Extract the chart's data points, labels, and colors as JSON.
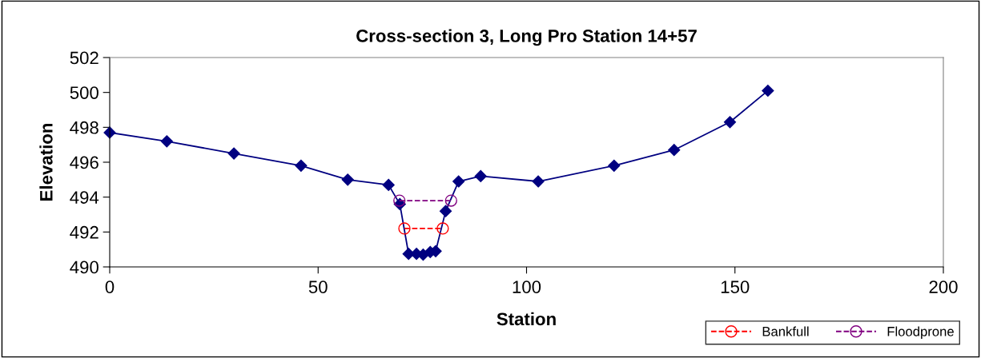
{
  "chart_data": {
    "type": "line",
    "title": "Cross-section 3, Long Pro Station 14+57",
    "xlabel": "Station",
    "ylabel": "Elevation",
    "xlim": [
      0,
      200
    ],
    "xticks": [
      0,
      50,
      100,
      150,
      200
    ],
    "ylim": [
      490,
      502
    ],
    "yticks": [
      490,
      492,
      494,
      496,
      498,
      500,
      502
    ],
    "grid": false,
    "legend": "bottom right",
    "series": [
      {
        "color": "#000080",
        "marker": "diamond",
        "line_style": "solid",
        "x": [
          0,
          13.7,
          29.8,
          45.9,
          57.1,
          66.9,
          69.6,
          71.7,
          73.6,
          75.2,
          76.9,
          78.2,
          80.6,
          83.7,
          89.0,
          102.8,
          121.0,
          135.4,
          148.8,
          157.9
        ],
        "values": [
          497.7,
          497.2,
          496.5,
          495.8,
          495.0,
          494.7,
          493.6,
          490.75,
          490.75,
          490.7,
          490.85,
          490.9,
          493.2,
          494.9,
          495.2,
          494.9,
          495.8,
          496.7,
          498.3,
          500.1
        ]
      },
      {
        "name": "Bankfull",
        "color": "#ff0000",
        "marker": "circle",
        "line_style": "dashed",
        "x": [
          70.7,
          79.9
        ],
        "values": [
          492.2,
          492.2
        ]
      },
      {
        "name": "Floodprone",
        "color": "#800080",
        "marker": "circle",
        "line_style": "dashed",
        "x": [
          69.5,
          81.9
        ],
        "values": [
          493.8,
          493.8
        ]
      }
    ]
  }
}
